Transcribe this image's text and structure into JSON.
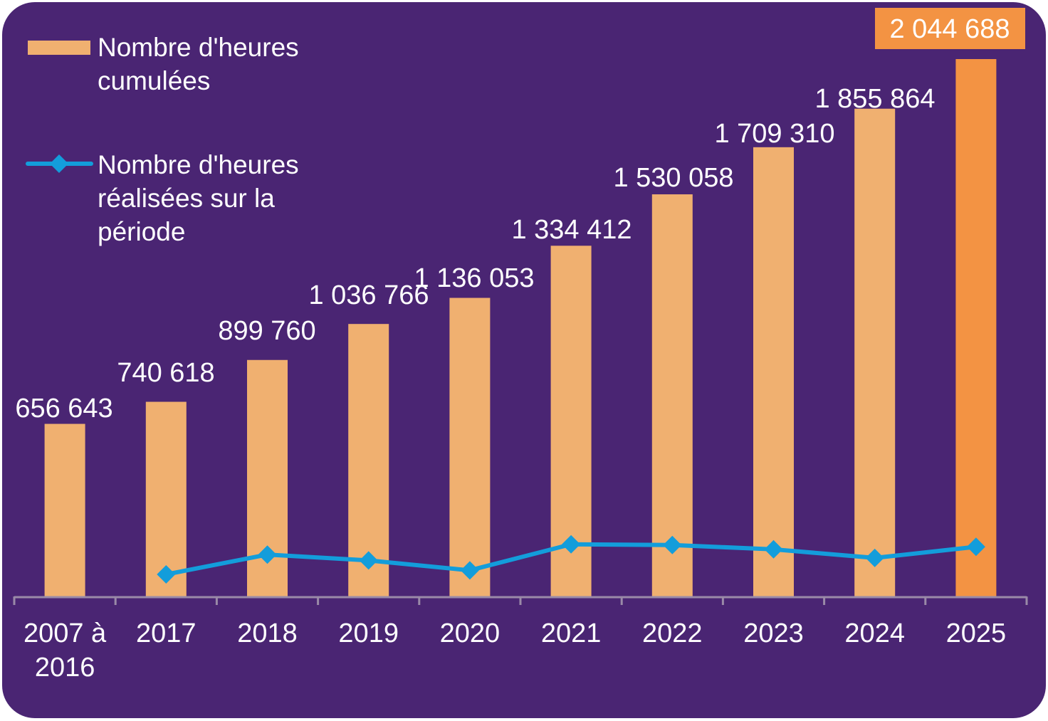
{
  "chart_data": {
    "type": "bar",
    "title": "",
    "xlabel": "",
    "ylabel": "",
    "categories": [
      "2007 à 2016",
      "2017",
      "2018",
      "2019",
      "2020",
      "2021",
      "2022",
      "2023",
      "2024",
      "2025"
    ],
    "category_lines": [
      [
        "2007 à",
        "2016"
      ],
      [
        "2017"
      ],
      [
        "2018"
      ],
      [
        "2019"
      ],
      [
        "2020"
      ],
      [
        "2021"
      ],
      [
        "2022"
      ],
      [
        "2023"
      ],
      [
        "2024"
      ],
      [
        "2025"
      ]
    ],
    "series": [
      {
        "name": "Nombre d'heures cumulées",
        "type": "bar",
        "color": "#f0b070",
        "highlight_color": "#f39343",
        "highlight_index": 9,
        "values": [
          656643,
          740618,
          899760,
          1036766,
          1136053,
          1334412,
          1530058,
          1709310,
          1855864,
          2044688
        ],
        "labels": [
          "656 643",
          "740 618",
          "899 760",
          "1 036 766",
          "1 136 053",
          "1 334 412",
          "1 530 058",
          "1 709 310",
          "1 855 864",
          "2 044 688"
        ]
      },
      {
        "name": "Nombre d'heures réalisées sur la période",
        "type": "line",
        "marker": "diamond",
        "color": "#139ddb",
        "values": [
          null,
          83975,
          159142,
          137006,
          99287,
          198359,
          195646,
          179252,
          146554,
          188824
        ]
      }
    ],
    "ylim": [
      0,
      2044688
    ],
    "grid": false,
    "y_axis_visible": false,
    "legend": {
      "position": "top-left",
      "entries": [
        {
          "lines": [
            "Nombre d'heures",
            "cumulées"
          ],
          "symbol": "bar"
        },
        {
          "lines": [
            "Nombre d'heures",
            "réalisées sur la",
            "période"
          ],
          "symbol": "line-diamond"
        }
      ]
    },
    "colors": {
      "background": "#4a2573",
      "axis": "#9a8aa8",
      "text": "#ffffff"
    }
  }
}
